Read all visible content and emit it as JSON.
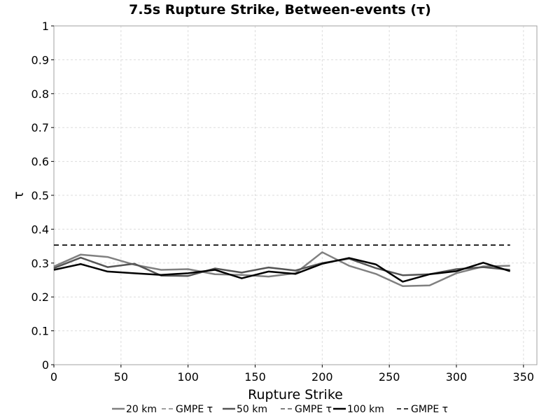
{
  "chart_data": {
    "type": "line",
    "title": "7.5s Rupture Strike, Between-events (τ)",
    "xlabel": "Rupture Strike",
    "ylabel": "τ",
    "xlim": [
      0,
      360
    ],
    "ylim": [
      0,
      1
    ],
    "xticks": [
      0,
      50,
      100,
      150,
      200,
      250,
      300,
      350
    ],
    "yticks": [
      0,
      0.1,
      0.2,
      0.3,
      0.4,
      0.5,
      0.6,
      0.7,
      0.8,
      0.9,
      1
    ],
    "x": [
      0,
      20,
      40,
      60,
      80,
      100,
      120,
      140,
      160,
      180,
      200,
      220,
      240,
      260,
      280,
      300,
      320,
      340
    ],
    "grid": true,
    "legend_position": "bottom",
    "series": [
      {
        "name": "20 km",
        "color": "#808080",
        "style": "solid",
        "width": 2.5,
        "values": [
          0.29,
          0.325,
          0.318,
          0.295,
          0.28,
          0.282,
          0.267,
          0.265,
          0.26,
          0.27,
          0.332,
          0.292,
          0.268,
          0.232,
          0.234,
          0.27,
          0.29,
          0.292
        ]
      },
      {
        "name": "GMPE τ",
        "color": "#808080",
        "style": "dashed",
        "width": 1.5,
        "values": [
          0.353,
          0.353,
          0.353,
          0.353,
          0.353,
          0.353,
          0.353,
          0.353,
          0.353,
          0.353,
          0.353,
          0.353,
          0.353,
          0.353,
          0.353,
          0.353,
          0.353,
          0.353
        ]
      },
      {
        "name": "50 km",
        "color": "#555555",
        "style": "solid",
        "width": 2.5,
        "values": [
          0.285,
          0.316,
          0.288,
          0.298,
          0.263,
          0.262,
          0.284,
          0.272,
          0.287,
          0.278,
          0.3,
          0.313,
          0.285,
          0.264,
          0.267,
          0.282,
          0.288,
          0.28
        ]
      },
      {
        "name": "GMPE τ",
        "color": "#555555",
        "style": "dashed",
        "width": 1.5,
        "values": [
          0.353,
          0.353,
          0.353,
          0.353,
          0.353,
          0.353,
          0.353,
          0.353,
          0.353,
          0.353,
          0.353,
          0.353,
          0.353,
          0.353,
          0.353,
          0.353,
          0.353,
          0.353
        ]
      },
      {
        "name": "100 km",
        "color": "#000000",
        "style": "solid",
        "width": 2.5,
        "values": [
          0.28,
          0.297,
          0.275,
          0.27,
          0.265,
          0.27,
          0.28,
          0.255,
          0.275,
          0.268,
          0.298,
          0.315,
          0.296,
          0.245,
          0.267,
          0.276,
          0.301,
          0.276
        ]
      },
      {
        "name": "GMPE τ",
        "color": "#000000",
        "style": "dashed",
        "width": 1.5,
        "values": [
          0.353,
          0.353,
          0.353,
          0.353,
          0.353,
          0.353,
          0.353,
          0.353,
          0.353,
          0.353,
          0.353,
          0.353,
          0.353,
          0.353,
          0.353,
          0.353,
          0.353,
          0.353
        ]
      }
    ]
  }
}
